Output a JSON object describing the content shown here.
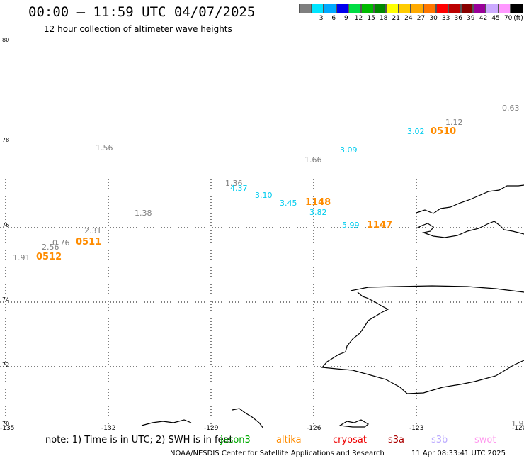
{
  "header": {
    "title": "00:00 – 11:59 UTC 04/07/2025",
    "subtitle": "12 hour collection of altimeter wave heights"
  },
  "color_scale": {
    "unit": "(ft)",
    "bins": [
      {
        "label": "",
        "color": "#7f7f7f"
      },
      {
        "label": "3",
        "color": "#00e5ff"
      },
      {
        "label": "6",
        "color": "#00aaff"
      },
      {
        "label": "9",
        "color": "#0000ee"
      },
      {
        "label": "12",
        "color": "#00dd44"
      },
      {
        "label": "15",
        "color": "#00bb00"
      },
      {
        "label": "18",
        "color": "#008800"
      },
      {
        "label": "21",
        "color": "#ffff00"
      },
      {
        "label": "24",
        "color": "#ffcc00"
      },
      {
        "label": "27",
        "color": "#ffaa00"
      },
      {
        "label": "30",
        "color": "#ff7700"
      },
      {
        "label": "33",
        "color": "#ff0000"
      },
      {
        "label": "36",
        "color": "#bb0000"
      },
      {
        "label": "39",
        "color": "#880000"
      },
      {
        "label": "42",
        "color": "#990099"
      },
      {
        "label": "45",
        "color": "#ccaaff"
      },
      {
        "label": "70",
        "color": "#ff99ff"
      },
      {
        "label": "",
        "color": "#000000"
      }
    ]
  },
  "axes": {
    "lat_labels": [
      "80",
      "78",
      "76",
      "74",
      "72",
      "70"
    ],
    "lon_labels": [
      "-135",
      "-132",
      "-129",
      "-126",
      "-123",
      "-120"
    ]
  },
  "wave_heights": [
    {
      "text": "0.63",
      "color": "#7f7f7f"
    },
    {
      "text": "1.12",
      "color": "#7f7f7f"
    },
    {
      "text": "3.02",
      "color": "#00ccee"
    },
    {
      "text": "3.09",
      "color": "#00ccee"
    },
    {
      "text": "1.56",
      "color": "#7f7f7f"
    },
    {
      "text": "1.66",
      "color": "#7f7f7f"
    },
    {
      "text": "1.36",
      "color": "#7f7f7f"
    },
    {
      "text": "4.37",
      "color": "#00ccee"
    },
    {
      "text": "3.10",
      "color": "#00ccee"
    },
    {
      "text": "3.45",
      "color": "#00ccee"
    },
    {
      "text": "3.82",
      "color": "#00ccee"
    },
    {
      "text": "1.38",
      "color": "#7f7f7f"
    },
    {
      "text": "5.99",
      "color": "#00ccee"
    },
    {
      "text": "2.31",
      "color": "#7f7f7f"
    },
    {
      "text": "0.76",
      "color": "#7f7f7f"
    },
    {
      "text": "2.56",
      "color": "#7f7f7f"
    },
    {
      "text": "1.91",
      "color": "#7f7f7f"
    },
    {
      "text": "1.9",
      "color": "#7f7f7f"
    }
  ],
  "time_marks": [
    {
      "text": "0510",
      "color": "#ff8c00"
    },
    {
      "text": "1148",
      "color": "#ff8c00"
    },
    {
      "text": "1147",
      "color": "#ff8c00"
    },
    {
      "text": "0511",
      "color": "#ff8c00"
    },
    {
      "text": "0512",
      "color": "#ff8c00"
    }
  ],
  "footer": {
    "note": "note: 1) Time is in UTC; 2) SWH is in feet",
    "satellites": [
      {
        "name": "jason3",
        "color": "#00aa00"
      },
      {
        "name": "altika",
        "color": "#ff8c00"
      },
      {
        "name": "cryosat",
        "color": "#ee0000"
      },
      {
        "name": "s3a",
        "color": "#aa0000"
      },
      {
        "name": "s3b",
        "color": "#bbaaff"
      },
      {
        "name": "swot",
        "color": "#ff99ee"
      }
    ],
    "credit": "NOAA/NESDIS Center for Satellite Applications and Research",
    "timestamp": "11 Apr 08:33:41 UTC 2025"
  }
}
